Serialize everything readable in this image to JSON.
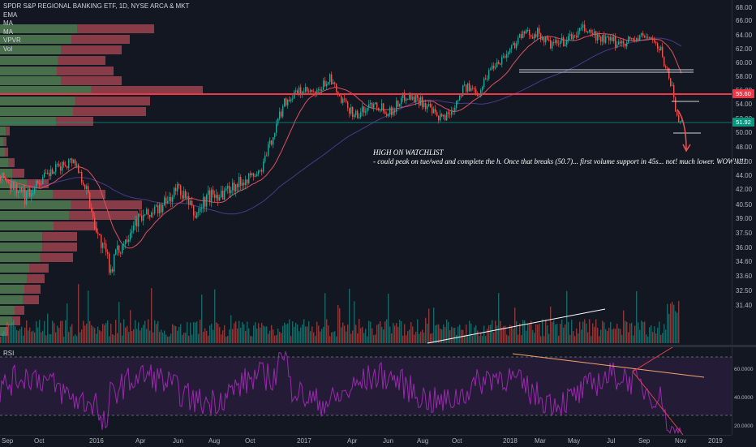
{
  "legend": {
    "title": "SPDR S&P REGIONAL BANKING ETF, 1D, NYSE ARCA & MKT",
    "indicators": [
      "EMA",
      "MA",
      "MA",
      "VPVR",
      "Vol"
    ]
  },
  "rsi_label": "RSI",
  "annotation": {
    "line1": "HIGH ON WATCHLIST",
    "line2": "- could peak on tue/wed and complete the h. Once that breaks (50.7)... first volume support in 45s... not! much lower. WOW!!!!!"
  },
  "price_axis": [
    "68.00",
    "66.00",
    "64.00",
    "62.00",
    "60.00",
    "58.00",
    "56.00",
    "54.00",
    "52.00",
    "50.00",
    "48.00",
    "46.00",
    "44.00",
    "42.00",
    "40.50",
    "39.00",
    "37.50",
    "36.00",
    "34.60",
    "33.60",
    "32.50",
    "31.40"
  ],
  "price_tags": {
    "red": {
      "text": "55.60",
      "color": "#f23645"
    },
    "green": {
      "text": "51.92",
      "color": "#089981"
    }
  },
  "rsi_axis": [
    "60.0000",
    "40.0000",
    "20.0000"
  ],
  "time_axis": [
    "Sep",
    "Oct",
    "2016",
    "Apr",
    "Jun",
    "Aug",
    "Oct",
    "2017",
    "Apr",
    "Jun",
    "Aug",
    "Oct",
    "2018",
    "Mar",
    "May",
    "Jul",
    "Sep",
    "Nov",
    "2019"
  ],
  "colors": {
    "background": "#131722",
    "up": "#26a69a",
    "down": "#ef5350",
    "rsi": "#9c27b0",
    "rsi_band": "#2a1f3d",
    "red_line": "#f23645"
  }
}
